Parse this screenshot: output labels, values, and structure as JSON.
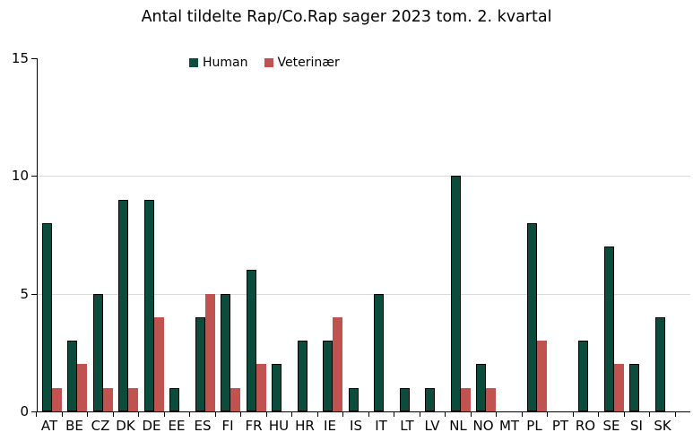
{
  "chart_data": {
    "type": "bar",
    "title": "Antal tildelte Rap/Co.Rap sager 2023 tom. 2. kvartal",
    "categories": [
      "AT",
      "BE",
      "CZ",
      "DK",
      "DE",
      "EE",
      "ES",
      "FI",
      "FR",
      "HU",
      "HR",
      "IE",
      "IS",
      "IT",
      "LT",
      "LV",
      "NL",
      "NO",
      "MT",
      "PL",
      "PT",
      "RO",
      "SE",
      "SI",
      "SK"
    ],
    "series": [
      {
        "name": "Human",
        "color": "#0b4c3c",
        "values": [
          8,
          3,
          5,
          9,
          9,
          1,
          4,
          5,
          6,
          2,
          3,
          3,
          1,
          5,
          1,
          1,
          10,
          2,
          0,
          8,
          0,
          3,
          7,
          2,
          4
        ]
      },
      {
        "name": "Veterinær",
        "color": "#c0534f",
        "values": [
          1,
          2,
          1,
          1,
          4,
          0,
          5,
          1,
          2,
          0,
          0,
          4,
          0,
          0,
          0,
          0,
          1,
          1,
          0,
          3,
          0,
          0,
          2,
          0,
          0
        ]
      }
    ],
    "xlabel": "",
    "ylabel": "",
    "ylim": [
      0,
      15
    ],
    "yticks": [
      0,
      5,
      10,
      15
    ],
    "gridlines_at": [
      5,
      10
    ],
    "grid": "horizontal",
    "legend_position": "top",
    "colors": {
      "background": "#ffffff",
      "axis": "#000000",
      "gridline": "#d9d9d9",
      "text": "#000000"
    }
  }
}
